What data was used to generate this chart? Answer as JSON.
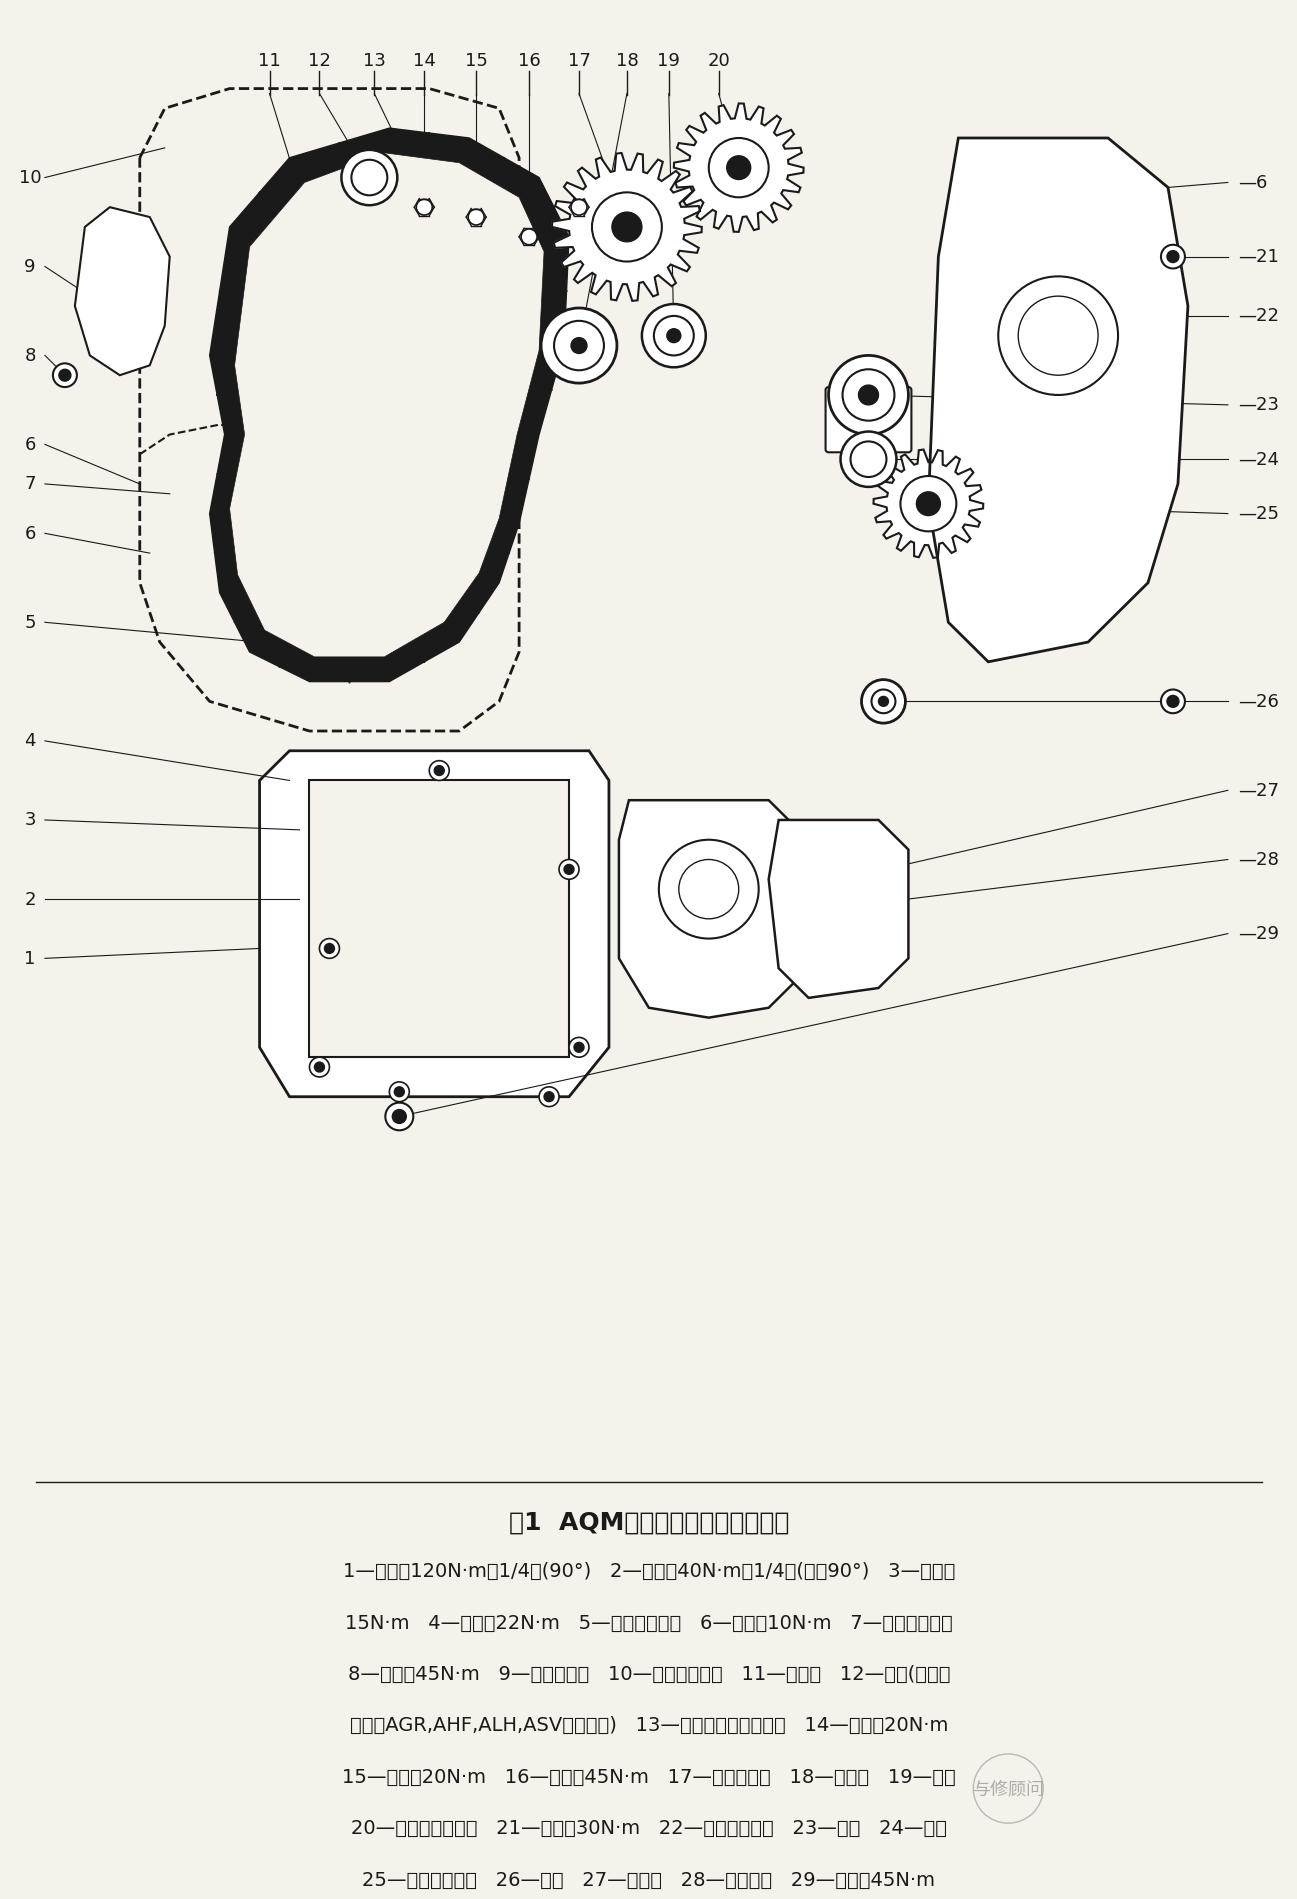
{
  "title": "图1  AQM发动机正时带单元分解图",
  "bg_color": "#f5f2ec",
  "text_color": "#1a1a1a",
  "title_fontsize": 18,
  "body_fontsize": 14,
  "caption_lines": [
    "1—螺钉，120N·m＋1/4圈(90°)   2—螺钉，40N·m＋1/4圈(或拧90°)   3—螺钉，",
    "15N·m   4—螺钉，22N·m   5—正时带下护盖   6—螺钉，10N·m   7—正时带中护盖",
    "8—螺钉，45N·m   9—发动机支架   10—正时带上护盖   11—正时带   12—惰轮(仅用于",
    "代码为AGR,AHF,ALH,ASV的发动机)   13—喷油泵带轮固定螺栓   14—螺钉，20N·m",
    "15—螺钉，20N·m   16—螺钉，45N·m   17—凸轮轴带轮   18—张紧轮   19—惰轮",
    "20—喷油泵传动带轮   21—螺钉，30N·m   22—后正时带护盖   23—水泵   24—惰轮",
    "25—曲轴正时带轮   26—衬套   27—喷油泵   28—紧固支架   29—螺钉，45N·m"
  ],
  "watermark": "与修顾问",
  "top_labels": [
    "11",
    "12",
    "13",
    "14",
    "15",
    "16",
    "17",
    "18",
    "19",
    "20"
  ],
  "right_labels": [
    "6",
    "21",
    "22",
    "23",
    "24",
    "25",
    "26",
    "27",
    "28",
    "29"
  ],
  "left_labels": [
    "10",
    "9",
    "8",
    "6",
    "7",
    "6",
    "5",
    "4",
    "3",
    "2",
    "1"
  ]
}
